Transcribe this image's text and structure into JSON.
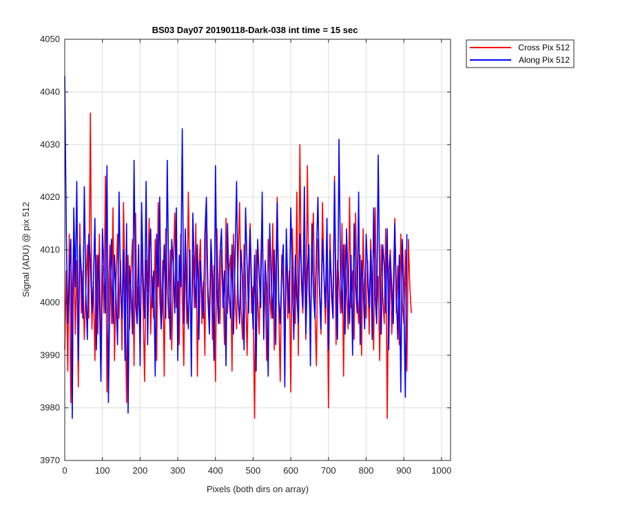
{
  "chart_data": {
    "type": "line",
    "title": "BS03 Day07 20190118-Dark-038 int time = 15 sec",
    "xlabel": "Pixels (both dirs on array)",
    "ylabel": "Signal (ADU) @ pix 512",
    "xlim": [
      0,
      1024
    ],
    "ylim": [
      3970,
      4050
    ],
    "xticks": [
      0,
      100,
      200,
      300,
      400,
      500,
      600,
      700,
      800,
      900,
      1000
    ],
    "yticks": [
      3970,
      3980,
      3990,
      4000,
      4010,
      4020,
      4030,
      4040,
      4050
    ],
    "grid": true,
    "legend_position": "outside-top-right",
    "x_step": 4,
    "series": [
      {
        "name": "Cross Pix 512",
        "color": "#ff0000",
        "values": [
          3991,
          4006,
          3987,
          4013,
          3981,
          4003,
          4012,
          3994,
          4008,
          3984,
          4015,
          3998,
          4006,
          3993,
          4002,
          4011,
          3997,
          4036,
          3995,
          4004,
          3989,
          4009,
          3994,
          4013,
          3986,
          4007,
          3998,
          4024,
          3983,
          4002,
          4011,
          3996,
          4018,
          3989,
          4004,
          4013,
          3997,
          4008,
          3991,
          4019,
          4002,
          3981,
          4009,
          3995,
          4006,
          4012,
          3988,
          4017,
          3996,
          4003,
          3991,
          4011,
          3999,
          3985,
          4008,
          4002,
          4016,
          3994,
          4005,
          3997,
          4012,
          3989,
          4019,
          4001,
          3995,
          4008,
          3986,
          4014,
          4003,
          3997,
          4010,
          3991,
          4006,
          4017,
          3999,
          4004,
          3992,
          4013,
          4001,
          3988,
          4011,
          3996,
          4021,
          4003,
          3994,
          4009,
          3999,
          4015,
          3986,
          4006,
          4012,
          3996,
          4004,
          3990,
          4018,
          4003,
          3997,
          4011,
          3993,
          4007,
          3985,
          4014,
          4001,
          3996,
          4010,
          4004,
          3992,
          4016,
          3998,
          4006,
          4009,
          3987,
          4013,
          4002,
          3995,
          4008,
          4019,
          3999,
          3993,
          4011,
          4004,
          3990,
          4006,
          4015,
          3998,
          4003,
          3978,
          4010,
          4001,
          3994,
          4007,
          4017,
          3996,
          4004,
          3989,
          4012,
          4002,
          3997,
          4015,
          3991,
          4006,
          4020,
          3999,
          3985,
          4009,
          4003,
          3994,
          4012,
          3997,
          4006,
          3983,
          4014,
          4002,
          3996,
          4021,
          3990,
          4030,
          4004,
          3998,
          4011,
          3993,
          4026,
          4002,
          3996,
          4008,
          4017,
          3999,
          3988,
          4012,
          4003,
          3994,
          4019,
          4005,
          3996,
          4010,
          3980,
          4013,
          4001,
          3997,
          4024,
          3992,
          4008,
          4004,
          3998,
          4015,
          3986,
          4011,
          4003,
          3995,
          4020,
          3999,
          4006,
          3993,
          4017,
          4002,
          3996,
          4009,
          3990,
          4014,
          4001,
          3997,
          4008,
          3994,
          4012,
          4003,
          3991,
          4018,
          3998,
          4005,
          3989,
          4011,
          4001,
          3996,
          4014,
          3978,
          4006,
          4010,
          3994,
          4003,
          4016,
          3998,
          4007,
          3992,
          4013,
          4000,
          3996,
          4010,
          3987,
          4012,
          4003,
          3998
        ]
      },
      {
        "name": "Along Pix 512",
        "color": "#0000ff",
        "values": [
          4043,
          4014,
          3996,
          4005,
          4012,
          3978,
          4018,
          4003,
          4023,
          3989,
          4011,
          4006,
          3997,
          4022,
          4002,
          3993,
          4013,
          4008,
          3998,
          4004,
          4016,
          3991,
          4009,
          4002,
          3985,
          4014,
          4006,
          3998,
          4026,
          3981,
          4003,
          4012,
          3996,
          4009,
          4001,
          3992,
          4021,
          4004,
          3997,
          4010,
          3989,
          4015,
          3979,
          4007,
          4002,
          3994,
          4027,
          4000,
          3996,
          4011,
          3988,
          4019,
          4005,
          3997,
          4023,
          3992,
          4009,
          4014,
          3999,
          4006,
          3986,
          4013,
          4003,
          4020,
          3995,
          4001,
          4011,
          3997,
          4027,
          4004,
          3993,
          4012,
          4007,
          3998,
          4018,
          3989,
          4009,
          4003,
          4033,
          3996,
          4014,
          4002,
          3995,
          4010,
          3986,
          4017,
          4006,
          3999,
          4011,
          3993,
          4008,
          4002,
          3997,
          4013,
          4020,
          4001,
          3994,
          4012,
          4005,
          3989,
          4026,
          4003,
          3996,
          4009,
          4014,
          3999,
          4006,
          3988,
          4015,
          4002,
          3997,
          4011,
          3994,
          4008,
          4023,
          4001,
          3996,
          4010,
          4004,
          3991,
          4018,
          4007,
          3998,
          4014,
          4003,
          3995,
          4009,
          3987,
          4012,
          4005,
          3999,
          4021,
          3993,
          4008,
          4002,
          3986,
          4015,
          4004,
          3997,
          4010,
          3992,
          4019,
          4001,
          3996,
          4006,
          4011,
          3984,
          4014,
          4003,
          3998,
          4018,
          4005,
          3993,
          4009,
          4001,
          3996,
          4013,
          4007,
          3999,
          4022,
          3994,
          4006,
          4011,
          3988,
          4015,
          4002,
          3997,
          4009,
          4020,
          4003,
          3995,
          4012,
          4005,
          3999,
          4016,
          3991,
          4010,
          4004,
          3997,
          4023,
          4002,
          3993,
          4031,
          4006,
          3998,
          4011,
          3994,
          4014,
          4003,
          3996,
          4009,
          3990,
          4015,
          4004,
          3998,
          4021,
          3992,
          4008,
          4003,
          3995,
          4013,
          4006,
          3999,
          4010,
          3993,
          4018,
          4001,
          3996,
          4028,
          4004,
          3994,
          4011,
          4007,
          3998,
          4014,
          3991,
          4009,
          4003,
          3996,
          4015,
          4002,
          3993,
          4009,
          3983,
          4012,
          4002,
          3982,
          4013
        ]
      }
    ]
  }
}
